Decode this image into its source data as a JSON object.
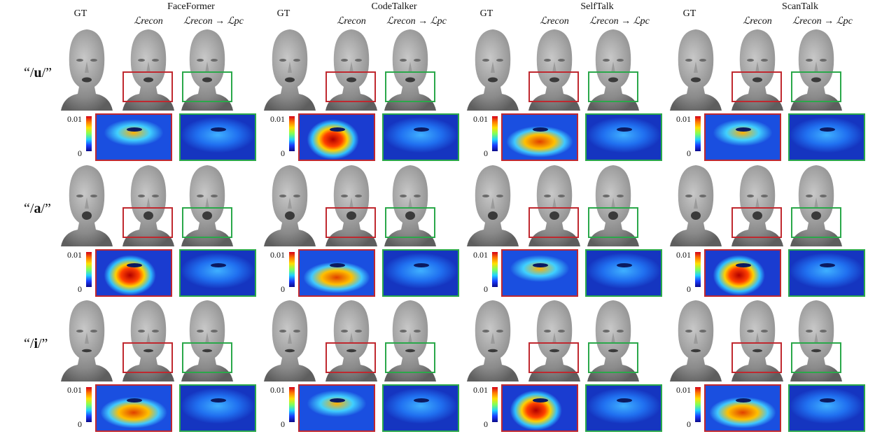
{
  "methods": [
    {
      "title": "FaceFormer"
    },
    {
      "title": "CodeTalker"
    },
    {
      "title": "SelfTalk"
    },
    {
      "title": "ScanTalk"
    }
  ],
  "column_labels": {
    "gt": "GT",
    "recon": "ℒrecon",
    "recon_pc": "ℒrecon → ℒpc"
  },
  "rows": [
    {
      "phoneme": "u"
    },
    {
      "phoneme": "a"
    },
    {
      "phoneme": "i"
    }
  ],
  "colorbar": {
    "max": "0.01",
    "min": "0"
  },
  "colors": {
    "red_box": "#c0282f",
    "green_box": "#2aa84a"
  }
}
